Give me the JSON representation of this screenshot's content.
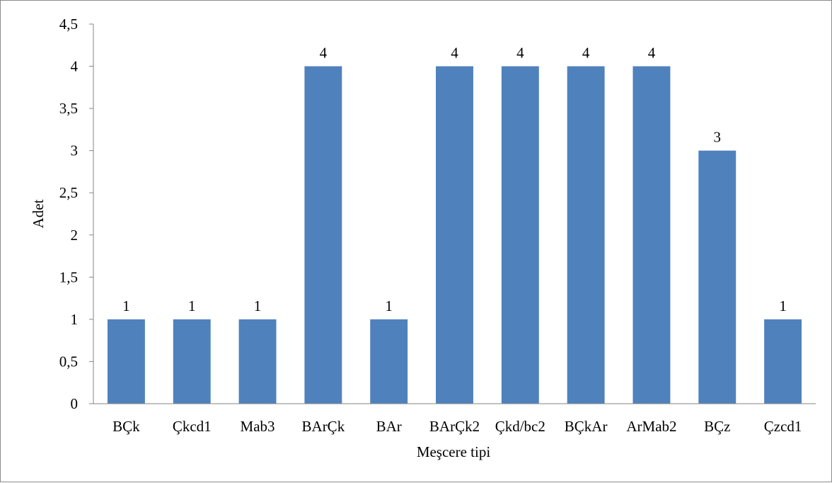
{
  "chart_data": {
    "type": "bar",
    "title": "",
    "xlabel": "Meşcere tipi",
    "ylabel": "Adet",
    "ylim": [
      0,
      4.5
    ],
    "ytick_step": 0.5,
    "yticks": [
      "0",
      "0,5",
      "1",
      "1,5",
      "2",
      "2,5",
      "3",
      "3,5",
      "4",
      "4,5"
    ],
    "categories": [
      "BÇk",
      "Çkcd1",
      "Mab3",
      "BArÇk",
      "BAr",
      "BArÇk2",
      "Çkd/bc2",
      "BÇkAr",
      "ArMab2",
      "BÇz",
      "Çzcd1"
    ],
    "values": [
      1,
      1,
      1,
      4,
      1,
      4,
      4,
      4,
      4,
      3,
      1
    ],
    "data_labels": [
      "1",
      "1",
      "1",
      "4",
      "1",
      "4",
      "4",
      "4",
      "4",
      "3",
      "1"
    ],
    "grid": false,
    "legend": "none",
    "colors": {
      "bar": "#4f81bd",
      "axis": "#868686",
      "frame": "#8c8c8c"
    }
  }
}
